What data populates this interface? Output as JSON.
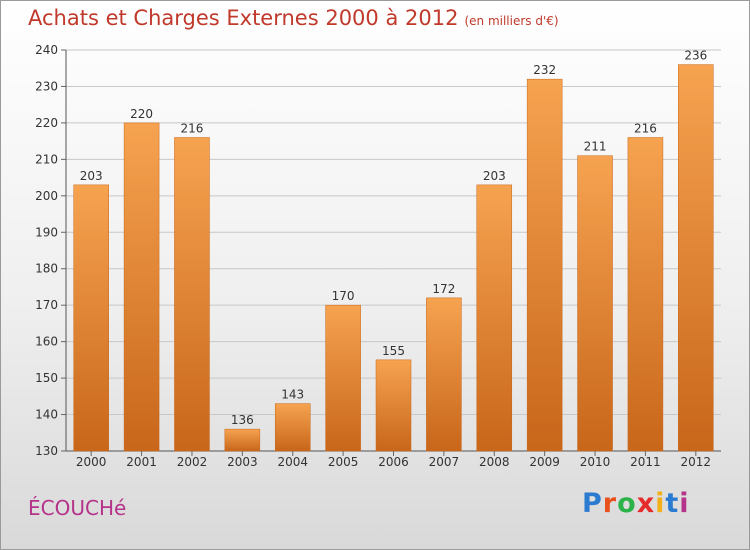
{
  "header": {
    "title": "Achats et Charges Externes 2000 à 2012",
    "subtitle": "(en milliers d'€)"
  },
  "footer": {
    "commune": "ÉCOUCHé",
    "logo_letters": [
      "P",
      "r",
      "o",
      "x",
      "i",
      "t",
      "i"
    ],
    "logo_colors": [
      "#2b7bd1",
      "#e8501c",
      "#2bb34a",
      "#e62b2b",
      "#f2b11b",
      "#2b7bd1",
      "#b5338a"
    ]
  },
  "chart_data": {
    "type": "bar",
    "categories": [
      "2000",
      "2001",
      "2002",
      "2003",
      "2004",
      "2005",
      "2006",
      "2007",
      "2008",
      "2009",
      "2010",
      "2011",
      "2012"
    ],
    "values": [
      203,
      220,
      216,
      136,
      143,
      170,
      155,
      172,
      203,
      232,
      211,
      216,
      236
    ],
    "ylim": [
      130,
      240
    ],
    "yticks": [
      130,
      140,
      150,
      160,
      170,
      180,
      190,
      200,
      210,
      220,
      230,
      240
    ],
    "grid": true,
    "bar_color_top": "#f6a350",
    "bar_color_bottom": "#c8661a"
  }
}
